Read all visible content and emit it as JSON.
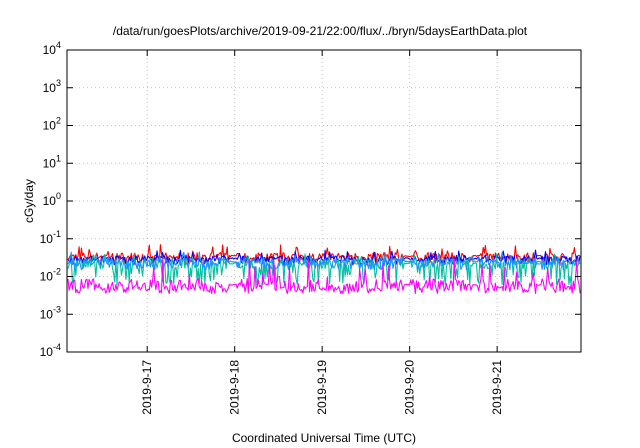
{
  "chart_data": {
    "type": "line",
    "title": "/data/run/goesPlots/archive/2019-09-21/22:00/flux/../bryn/5daysEarthData.plot",
    "xlabel": "Coordinated Universal Time (UTC)",
    "ylabel": "cGy/day",
    "x_range": [
      "2019-09-16T02:00",
      "2019-09-21T23:00"
    ],
    "x_ticks": [
      "2019-9-17",
      "2019-9-18",
      "2019-9-19",
      "2019-9-20",
      "2019-9-21"
    ],
    "y_scale": "log",
    "y_range": [
      0.0001,
      10000
    ],
    "y_ticks": [
      {
        "base": "10",
        "exp": "-4",
        "value": 0.0001
      },
      {
        "base": "10",
        "exp": "-3",
        "value": 0.001
      },
      {
        "base": "10",
        "exp": "-2",
        "value": 0.01
      },
      {
        "base": "10",
        "exp": "-1",
        "value": 0.1
      },
      {
        "base": "10",
        "exp": "0",
        "value": 1
      },
      {
        "base": "10",
        "exp": "1",
        "value": 10
      },
      {
        "base": "10",
        "exp": "2",
        "value": 100
      },
      {
        "base": "10",
        "exp": "3",
        "value": 1000
      },
      {
        "base": "10",
        "exp": "4",
        "value": 10000
      }
    ],
    "grid": true,
    "series": [
      {
        "color": "#ff0000",
        "typical": 0.035,
        "low": 0.022,
        "high": 0.07
      },
      {
        "color": "#0000ff",
        "typical": 0.03,
        "low": 0.02,
        "high": 0.05
      },
      {
        "color": "#00c0a0",
        "typical": 0.022,
        "low": 0.006,
        "high": 0.04
      },
      {
        "color": "#1e90ff",
        "typical": 0.025,
        "low": 0.015,
        "high": 0.045
      },
      {
        "color": "#ff00ff",
        "typical": 0.006,
        "low": 0.0035,
        "high": 0.03
      }
    ]
  }
}
